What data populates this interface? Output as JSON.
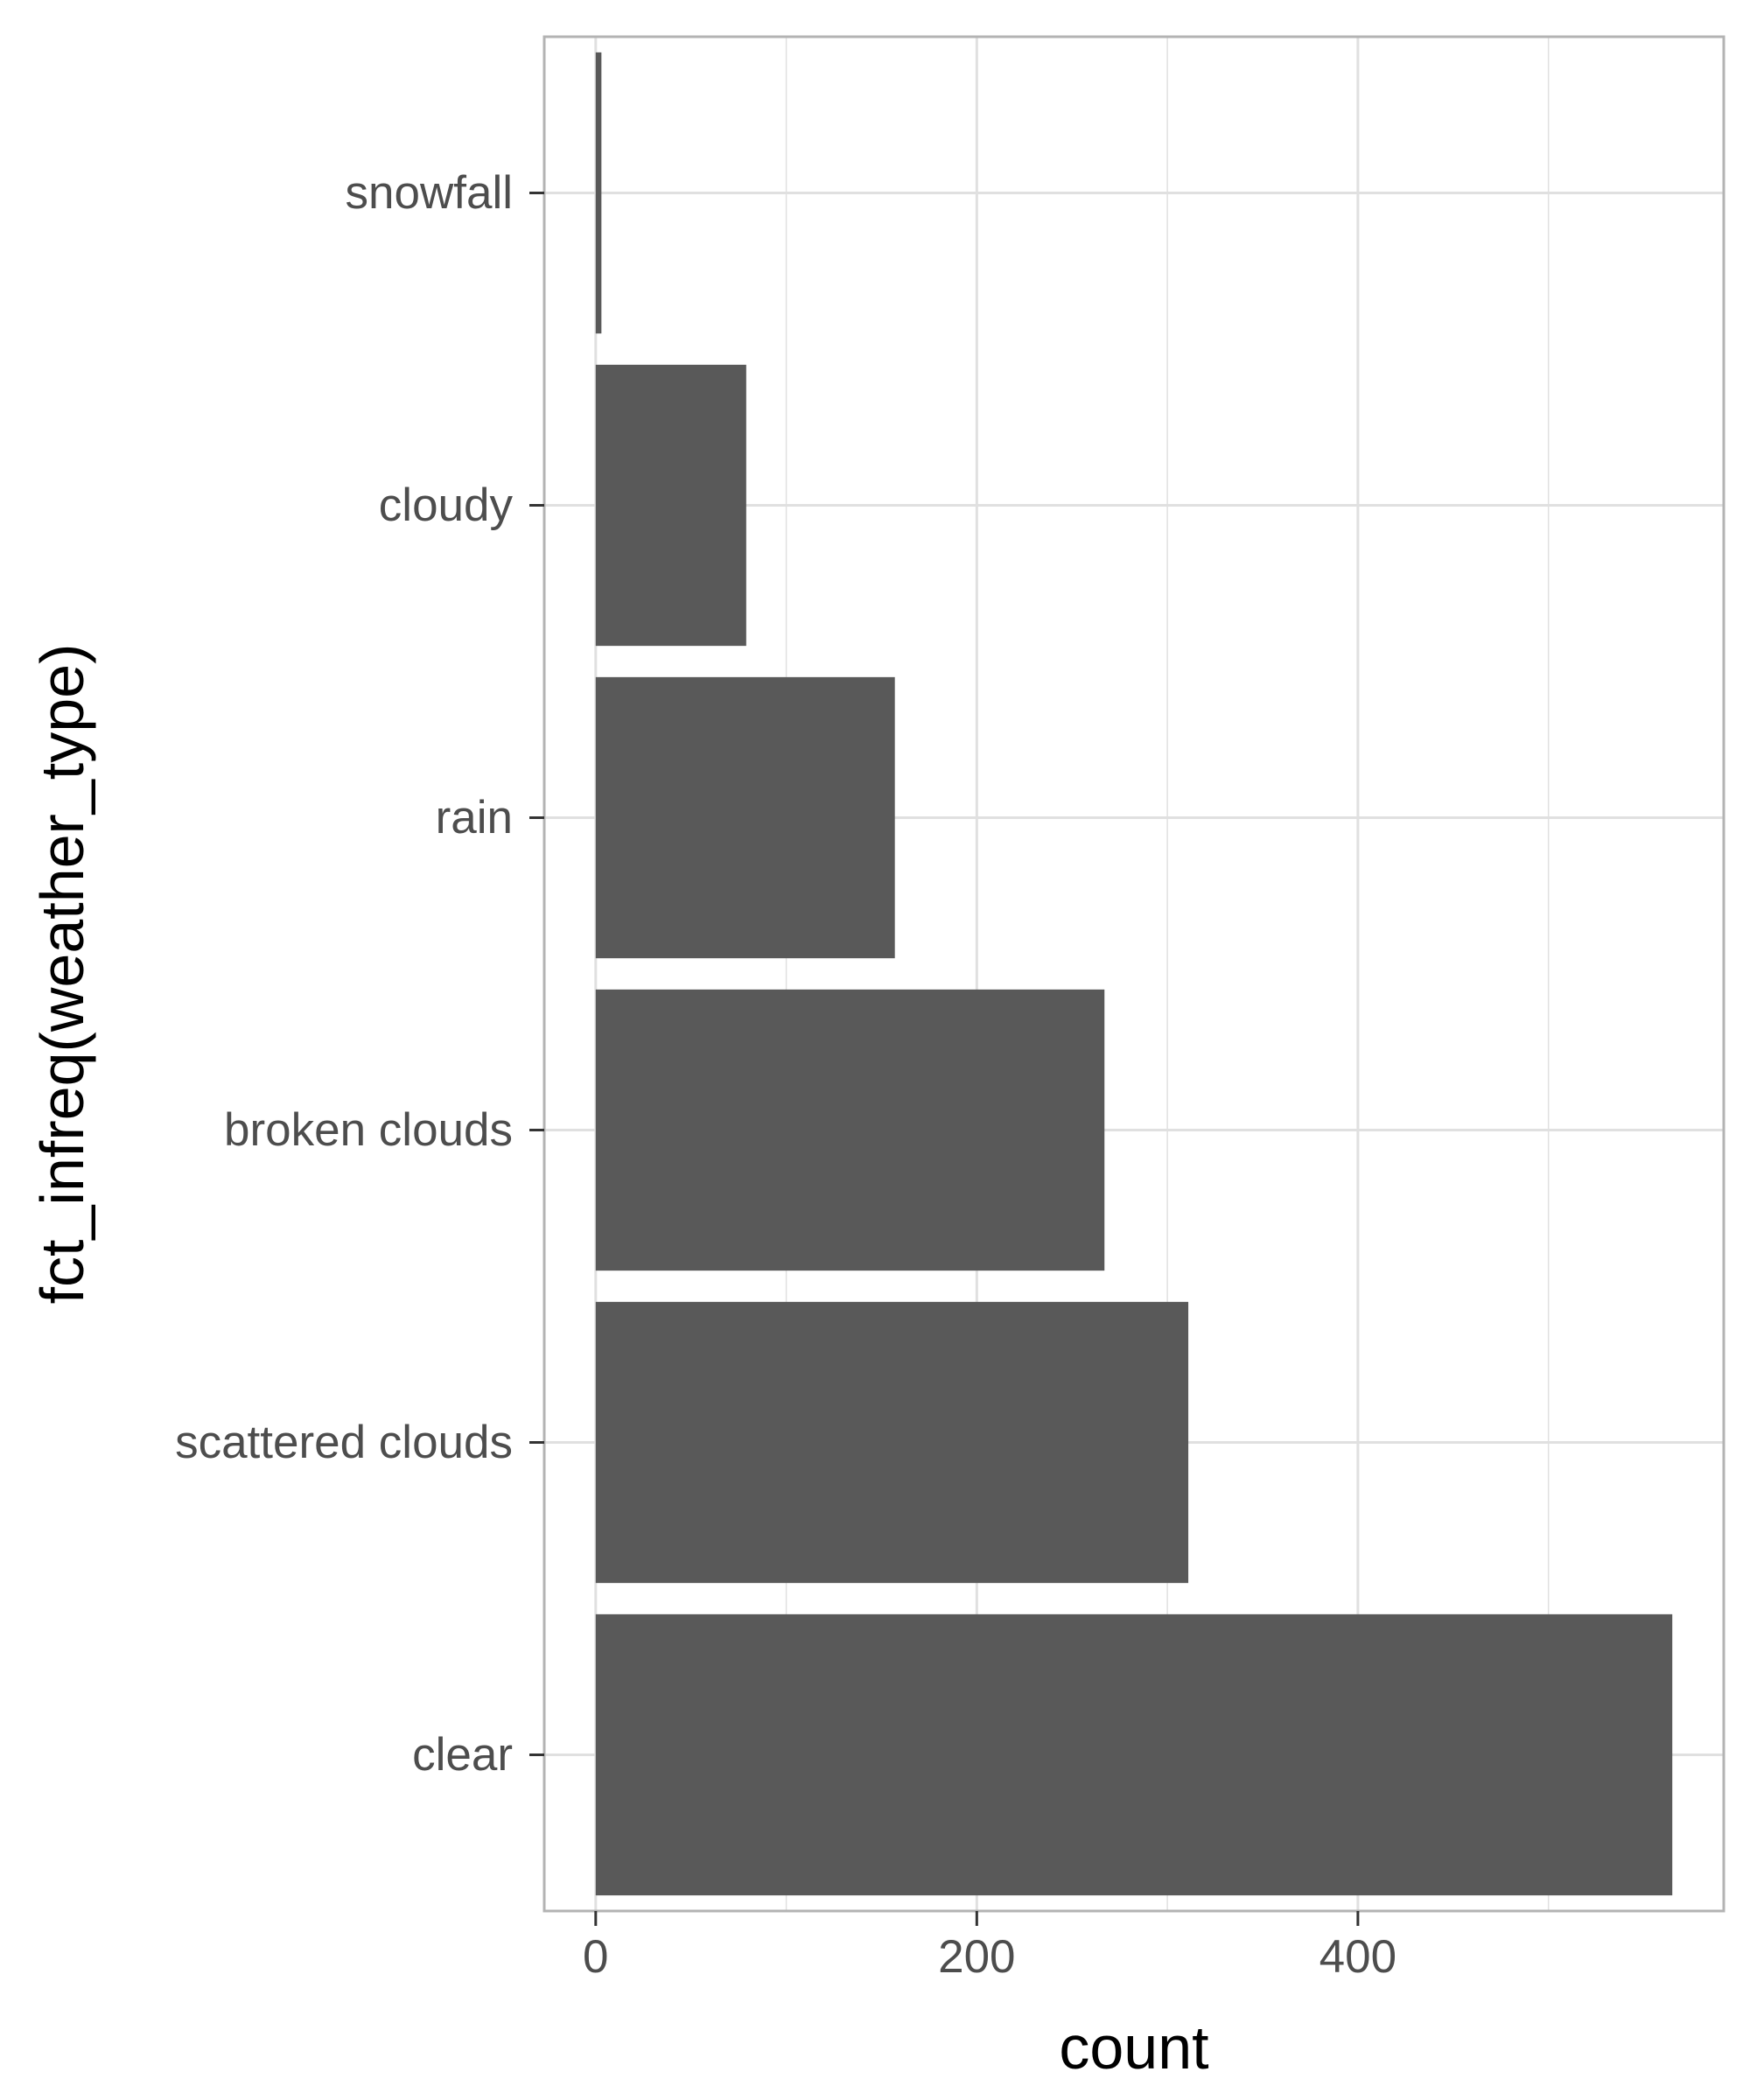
{
  "chart_data": {
    "type": "bar",
    "orientation": "horizontal",
    "categories": [
      "clear",
      "scattered clouds",
      "broken clouds",
      "rain",
      "cloudy",
      "snowfall"
    ],
    "values": [
      565,
      311,
      267,
      157,
      79,
      3
    ],
    "xlabel": "count",
    "ylabel": "fct_infreq(weather_type)",
    "xlim": [
      -27,
      592
    ],
    "xticks": [
      0,
      200,
      400
    ],
    "xtick_labels": [
      "0",
      "200",
      "400"
    ],
    "grid": true,
    "bar_color": "#595959",
    "grid_color": "#e0e0e0",
    "panel_border_color": "#b3b3b3",
    "tick_label_color": "#4d4d4d"
  }
}
